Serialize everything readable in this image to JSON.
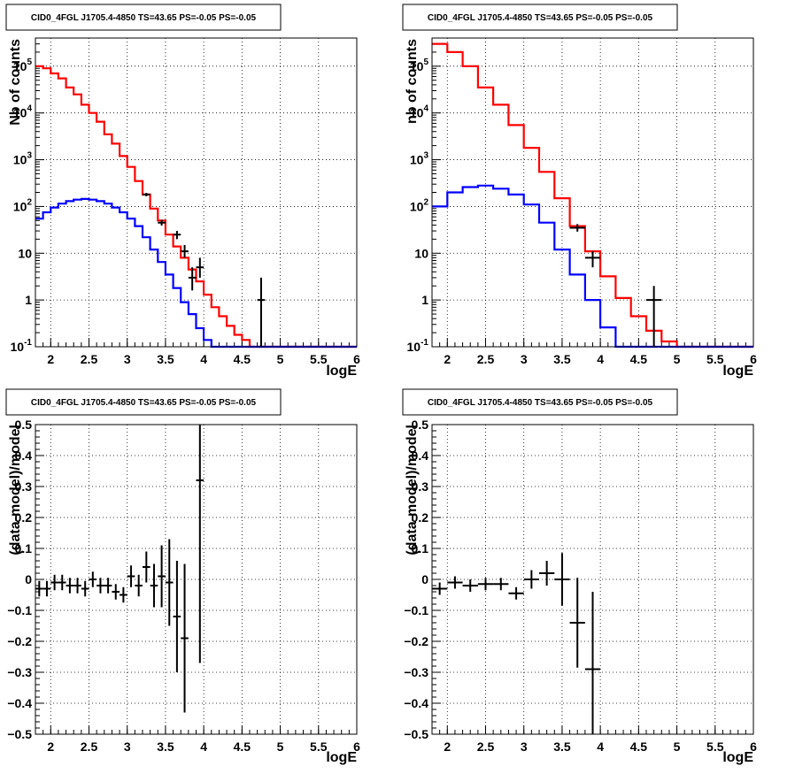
{
  "chart_data": [
    {
      "type": "line",
      "title": "CID0_4FGL J1705.4-4850 TS=43.65 PS=-0.05 PS=-0.05",
      "xlabel": "logE",
      "ylabel": "Nb of counts",
      "xlim": [
        1.8,
        6.0
      ],
      "ylim": [
        0.1,
        400000
      ],
      "yscale": "log",
      "grid": true,
      "x_ticks": [
        "2",
        "2.5",
        "3",
        "3.5",
        "4",
        "4.5",
        "5",
        "5.5",
        "6"
      ],
      "y_ticks": [
        "10^-1",
        "1",
        "10",
        "10^2",
        "10^3",
        "10^4",
        "10^5"
      ],
      "bin_width": 0.1,
      "series": [
        {
          "color": "#ff0000",
          "bin_starts": [
            1.8,
            1.9,
            2.0,
            2.1,
            2.2,
            2.3,
            2.4,
            2.5,
            2.6,
            2.7,
            2.8,
            2.9,
            3.0,
            3.1,
            3.2,
            3.3,
            3.4,
            3.5,
            3.6,
            3.7,
            3.8,
            3.9,
            4.0,
            4.1,
            4.2,
            4.3,
            4.4,
            4.5,
            4.6,
            4.7,
            4.8,
            4.9,
            5.0,
            5.1,
            5.2,
            5.3,
            5.4,
            5.5,
            5.6,
            5.7,
            5.8,
            5.9
          ],
          "values": [
            100000,
            90000,
            70000,
            55000,
            35000,
            25000,
            15000,
            10000,
            6500,
            3500,
            2200,
            1200,
            700,
            350,
            180,
            90,
            50,
            25,
            14,
            8,
            4.5,
            2.5,
            1.3,
            0.7,
            0.45,
            0.28,
            0.18,
            0.14,
            0.1,
            0.1,
            0.1,
            0.1,
            0.1,
            0.1,
            0.1,
            0.1,
            0.1,
            0.1,
            0.1,
            0.1,
            0.1,
            0.1
          ]
        },
        {
          "color": "#0000ff",
          "bin_starts": [
            1.8,
            1.9,
            2.0,
            2.1,
            2.2,
            2.3,
            2.4,
            2.5,
            2.6,
            2.7,
            2.8,
            2.9,
            3.0,
            3.1,
            3.2,
            3.3,
            3.4,
            3.5,
            3.6,
            3.7,
            3.8,
            3.9,
            4.0,
            4.1,
            4.2,
            4.3,
            4.4,
            4.5,
            4.6,
            4.7,
            4.8,
            4.9,
            5.0,
            5.1,
            5.2,
            5.3,
            5.4,
            5.5,
            5.6,
            5.7,
            5.8,
            5.9
          ],
          "values": [
            55,
            75,
            95,
            115,
            130,
            140,
            145,
            140,
            130,
            115,
            95,
            75,
            55,
            38,
            22,
            12,
            6.5,
            3.5,
            1.8,
            0.9,
            0.5,
            0.25,
            0.14,
            0.1,
            0.1,
            0.1,
            0.1,
            0.1,
            0.1,
            0.1,
            0.1,
            0.1,
            0.1,
            0.1,
            0.1,
            0.1,
            0.1,
            0.1,
            0.1,
            0.1,
            0.1,
            0.1
          ]
        }
      ],
      "data_points": [
        {
          "x": 3.25,
          "y": 180,
          "ylo": 165,
          "yhi": 195
        },
        {
          "x": 3.45,
          "y": 45,
          "ylo": 39,
          "yhi": 52
        },
        {
          "x": 3.65,
          "y": 25,
          "ylo": 20,
          "yhi": 30
        },
        {
          "x": 3.75,
          "y": 11,
          "ylo": 8,
          "yhi": 15
        },
        {
          "x": 3.85,
          "y": 3,
          "ylo": 1.6,
          "yhi": 5
        },
        {
          "x": 3.95,
          "y": 5,
          "ylo": 3,
          "yhi": 8
        },
        {
          "x": 4.75,
          "y": 1,
          "ylo": 0.1,
          "yhi": 3
        }
      ]
    },
    {
      "type": "line",
      "title": "CID0_4FGL J1705.4-4850 TS=43.65 PS=-0.05 PS=-0.05",
      "xlabel": "logE",
      "ylabel": "nb of counts",
      "xlim": [
        1.8,
        6.0
      ],
      "ylim": [
        0.1,
        400000
      ],
      "yscale": "log",
      "grid": true,
      "x_ticks": [
        "2",
        "2.5",
        "3",
        "3.5",
        "4",
        "4.5",
        "5",
        "5.5",
        "6"
      ],
      "y_ticks": [
        "10^-1",
        "1",
        "10",
        "10^2",
        "10^3",
        "10^4",
        "10^5"
      ],
      "bin_width": 0.2,
      "series": [
        {
          "color": "#ff0000",
          "bin_starts": [
            1.8,
            2.0,
            2.2,
            2.4,
            2.6,
            2.8,
            3.0,
            3.2,
            3.4,
            3.6,
            3.8,
            4.0,
            4.2,
            4.4,
            4.6,
            4.8,
            5.0,
            5.2,
            5.4,
            5.6,
            5.8
          ],
          "values": [
            300000,
            200000,
            100000,
            35000,
            15000,
            5500,
            1800,
            550,
            150,
            38,
            11,
            3.2,
            1.1,
            0.45,
            0.22,
            0.13,
            0.1,
            0.1,
            0.1,
            0.1,
            0.1
          ]
        },
        {
          "color": "#0000ff",
          "bin_starts": [
            1.8,
            2.0,
            2.2,
            2.4,
            2.6,
            2.8,
            3.0,
            3.2,
            3.4,
            3.6,
            3.8,
            4.0,
            4.2,
            4.4,
            4.6,
            4.8,
            5.0,
            5.2,
            5.4,
            5.6,
            5.8
          ],
          "values": [
            100,
            200,
            260,
            280,
            240,
            180,
            110,
            45,
            12,
            3.5,
            1,
            0.26,
            0.1,
            0.1,
            0.1,
            0.1,
            0.1,
            0.1,
            0.1,
            0.1,
            0.1
          ]
        }
      ],
      "data_points": [
        {
          "x": 3.7,
          "y": 35,
          "ylo": 29,
          "yhi": 42
        },
        {
          "x": 3.9,
          "y": 8,
          "ylo": 5,
          "yhi": 11
        },
        {
          "x": 4.7,
          "y": 1,
          "ylo": 0.1,
          "yhi": 2
        }
      ]
    },
    {
      "type": "scatter",
      "title": "CID0_4FGL J1705.4-4850 TS=43.65 PS=-0.05 PS=-0.05",
      "xlabel": "logE",
      "ylabel": "(data-model)/model",
      "xlim": [
        1.8,
        6.0
      ],
      "ylim": [
        -0.5,
        0.5
      ],
      "grid": true,
      "x_ticks": [
        "2",
        "2.5",
        "3",
        "3.5",
        "4",
        "4.5",
        "5",
        "5.5",
        "6"
      ],
      "y_ticks": [
        "−0.5",
        "−0.4",
        "−0.3",
        "−0.2",
        "−0.1",
        "0",
        "0.1",
        "0.2",
        "0.3",
        "0.4",
        "0.5"
      ],
      "x_error": 0.05,
      "points": [
        {
          "x": 1.85,
          "y": -0.03,
          "err": 0.025
        },
        {
          "x": 1.95,
          "y": -0.03,
          "err": 0.025
        },
        {
          "x": 2.05,
          "y": -0.01,
          "err": 0.025
        },
        {
          "x": 2.15,
          "y": -0.01,
          "err": 0.025
        },
        {
          "x": 2.25,
          "y": -0.02,
          "err": 0.025
        },
        {
          "x": 2.35,
          "y": -0.02,
          "err": 0.025
        },
        {
          "x": 2.45,
          "y": -0.03,
          "err": 0.025
        },
        {
          "x": 2.55,
          "y": 0.0,
          "err": 0.025
        },
        {
          "x": 2.65,
          "y": -0.02,
          "err": 0.025
        },
        {
          "x": 2.75,
          "y": -0.02,
          "err": 0.025
        },
        {
          "x": 2.85,
          "y": -0.04,
          "err": 0.025
        },
        {
          "x": 2.95,
          "y": -0.05,
          "err": 0.025
        },
        {
          "x": 3.05,
          "y": 0.01,
          "err": 0.035
        },
        {
          "x": 3.15,
          "y": -0.02,
          "err": 0.035
        },
        {
          "x": 3.25,
          "y": 0.04,
          "err": 0.05
        },
        {
          "x": 3.35,
          "y": -0.02,
          "err": 0.07
        },
        {
          "x": 3.45,
          "y": 0.01,
          "err": 0.1
        },
        {
          "x": 3.55,
          "y": -0.01,
          "err": 0.14
        },
        {
          "x": 3.65,
          "y": -0.12,
          "err": 0.18
        },
        {
          "x": 3.75,
          "y": -0.19,
          "err": 0.24
        },
        {
          "x": 3.95,
          "y": 0.32,
          "err": 0.59
        }
      ]
    },
    {
      "type": "scatter",
      "title": "CID0_4FGL J1705.4-4850 TS=43.65 PS=-0.05 PS=-0.05",
      "xlabel": "logE",
      "ylabel": "(data-model)/model",
      "xlim": [
        1.8,
        6.0
      ],
      "ylim": [
        -0.5,
        0.5
      ],
      "grid": true,
      "x_ticks": [
        "2",
        "2.5",
        "3",
        "3.5",
        "4",
        "4.5",
        "5",
        "5.5",
        "6"
      ],
      "y_ticks": [
        "−0.5",
        "−0.4",
        "−0.3",
        "−0.2",
        "−0.1",
        "0",
        "0.1",
        "0.2",
        "0.3",
        "0.4",
        "0.5"
      ],
      "x_error": 0.1,
      "points": [
        {
          "x": 1.9,
          "y": -0.03,
          "err": 0.02
        },
        {
          "x": 2.1,
          "y": -0.01,
          "err": 0.02
        },
        {
          "x": 2.3,
          "y": -0.02,
          "err": 0.02
        },
        {
          "x": 2.5,
          "y": -0.015,
          "err": 0.02
        },
        {
          "x": 2.7,
          "y": -0.015,
          "err": 0.02
        },
        {
          "x": 2.9,
          "y": -0.045,
          "err": 0.02
        },
        {
          "x": 3.1,
          "y": 0.0,
          "err": 0.03
        },
        {
          "x": 3.3,
          "y": 0.02,
          "err": 0.04
        },
        {
          "x": 3.5,
          "y": 0.0,
          "err": 0.085
        },
        {
          "x": 3.7,
          "y": -0.14,
          "err": 0.145
        },
        {
          "x": 3.9,
          "y": -0.29,
          "err": 0.25
        }
      ]
    }
  ]
}
